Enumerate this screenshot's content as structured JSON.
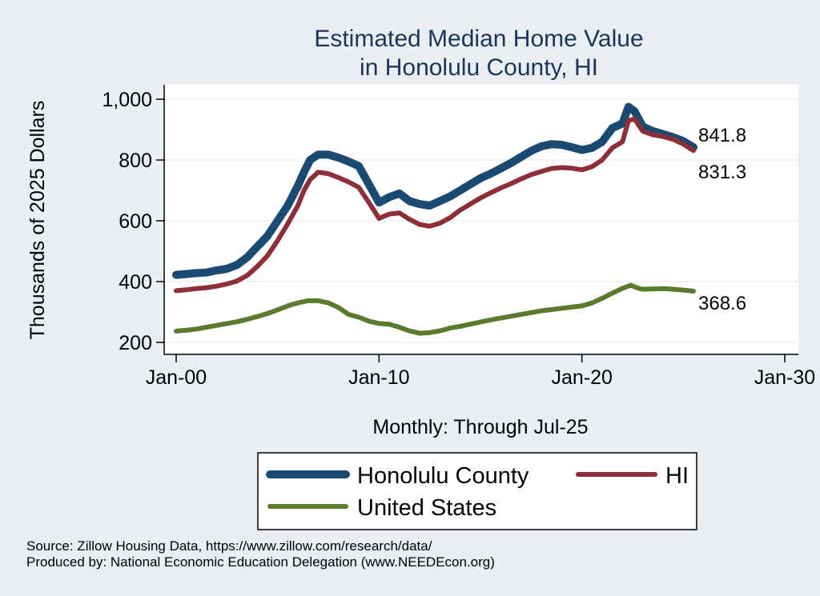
{
  "chart_data": {
    "type": "line",
    "title": [
      "Estimated Median Home Value",
      "in Honolulu County, HI"
    ],
    "ylabel": "Thousands of 2025 Dollars",
    "xlabel": "Monthly: Through Jul-25",
    "xlim": [
      2000,
      2030
    ],
    "ylim": [
      180,
      1040
    ],
    "x_ticks": [
      {
        "value": 2000,
        "label": "Jan-00"
      },
      {
        "value": 2010,
        "label": "Jan-10"
      },
      {
        "value": 2020,
        "label": "Jan-20"
      },
      {
        "value": 2030,
        "label": "Jan-30"
      }
    ],
    "y_ticks": [
      {
        "value": 200,
        "label": "200"
      },
      {
        "value": 400,
        "label": "400"
      },
      {
        "value": 600,
        "label": "600"
      },
      {
        "value": 800,
        "label": "800"
      },
      {
        "value": 1000,
        "label": "1,000"
      }
    ],
    "grid": true,
    "series": [
      {
        "name": "Honolulu County",
        "color": "#1a4a72",
        "end_label": "841.8",
        "points": [
          [
            2000,
            422
          ],
          [
            2000.5,
            425
          ],
          [
            2001,
            428
          ],
          [
            2001.5,
            430
          ],
          [
            2002,
            437
          ],
          [
            2002.5,
            442
          ],
          [
            2003,
            455
          ],
          [
            2003.5,
            480
          ],
          [
            2004,
            515
          ],
          [
            2004.5,
            550
          ],
          [
            2005,
            600
          ],
          [
            2005.5,
            650
          ],
          [
            2006,
            715
          ],
          [
            2006.3,
            760
          ],
          [
            2006.6,
            800
          ],
          [
            2007,
            818
          ],
          [
            2007.5,
            818
          ],
          [
            2008,
            808
          ],
          [
            2008.5,
            795
          ],
          [
            2009,
            780
          ],
          [
            2009.5,
            720
          ],
          [
            2010,
            660
          ],
          [
            2010.5,
            678
          ],
          [
            2011,
            690
          ],
          [
            2011.5,
            665
          ],
          [
            2012,
            655
          ],
          [
            2012.5,
            650
          ],
          [
            2013,
            665
          ],
          [
            2013.5,
            680
          ],
          [
            2014,
            700
          ],
          [
            2014.5,
            720
          ],
          [
            2015,
            740
          ],
          [
            2015.5,
            755
          ],
          [
            2016,
            772
          ],
          [
            2016.5,
            790
          ],
          [
            2017,
            810
          ],
          [
            2017.5,
            830
          ],
          [
            2018,
            845
          ],
          [
            2018.5,
            852
          ],
          [
            2019,
            850
          ],
          [
            2019.5,
            842
          ],
          [
            2020,
            833
          ],
          [
            2020.5,
            840
          ],
          [
            2021,
            860
          ],
          [
            2021.5,
            905
          ],
          [
            2022,
            920
          ],
          [
            2022.3,
            975
          ],
          [
            2022.6,
            960
          ],
          [
            2023,
            910
          ],
          [
            2023.5,
            895
          ],
          [
            2024,
            885
          ],
          [
            2024.5,
            875
          ],
          [
            2025,
            862
          ],
          [
            2025.5,
            842
          ]
        ]
      },
      {
        "name": "HI",
        "color": "#8c2f39",
        "end_label": "831.3",
        "points": [
          [
            2000,
            370
          ],
          [
            2000.5,
            373
          ],
          [
            2001,
            377
          ],
          [
            2001.5,
            380
          ],
          [
            2002,
            385
          ],
          [
            2002.5,
            392
          ],
          [
            2003,
            402
          ],
          [
            2003.5,
            420
          ],
          [
            2004,
            450
          ],
          [
            2004.5,
            485
          ],
          [
            2005,
            535
          ],
          [
            2005.5,
            590
          ],
          [
            2006,
            650
          ],
          [
            2006.3,
            700
          ],
          [
            2006.6,
            735
          ],
          [
            2007,
            760
          ],
          [
            2007.5,
            755
          ],
          [
            2008,
            742
          ],
          [
            2008.5,
            728
          ],
          [
            2009,
            710
          ],
          [
            2009.5,
            660
          ],
          [
            2010,
            608
          ],
          [
            2010.5,
            622
          ],
          [
            2011,
            626
          ],
          [
            2011.5,
            605
          ],
          [
            2012,
            588
          ],
          [
            2012.5,
            582
          ],
          [
            2013,
            592
          ],
          [
            2013.5,
            610
          ],
          [
            2014,
            635
          ],
          [
            2014.5,
            655
          ],
          [
            2015,
            675
          ],
          [
            2015.5,
            692
          ],
          [
            2016,
            708
          ],
          [
            2016.5,
            722
          ],
          [
            2017,
            738
          ],
          [
            2017.5,
            752
          ],
          [
            2018,
            762
          ],
          [
            2018.5,
            772
          ],
          [
            2019,
            775
          ],
          [
            2019.5,
            773
          ],
          [
            2020,
            768
          ],
          [
            2020.5,
            778
          ],
          [
            2021,
            800
          ],
          [
            2021.5,
            840
          ],
          [
            2022,
            860
          ],
          [
            2022.3,
            930
          ],
          [
            2022.6,
            935
          ],
          [
            2023,
            895
          ],
          [
            2023.5,
            883
          ],
          [
            2024,
            877
          ],
          [
            2024.5,
            868
          ],
          [
            2025,
            852
          ],
          [
            2025.5,
            831
          ]
        ]
      },
      {
        "name": "United States",
        "color": "#5a7a2e",
        "end_label": "368.6",
        "points": [
          [
            2000,
            237
          ],
          [
            2000.5,
            240
          ],
          [
            2001,
            244
          ],
          [
            2001.5,
            250
          ],
          [
            2002,
            256
          ],
          [
            2002.5,
            262
          ],
          [
            2003,
            268
          ],
          [
            2003.5,
            276
          ],
          [
            2004,
            285
          ],
          [
            2004.5,
            295
          ],
          [
            2005,
            307
          ],
          [
            2005.5,
            320
          ],
          [
            2006,
            330
          ],
          [
            2006.5,
            337
          ],
          [
            2007,
            337
          ],
          [
            2007.5,
            330
          ],
          [
            2008,
            315
          ],
          [
            2008.5,
            292
          ],
          [
            2009,
            283
          ],
          [
            2009.5,
            270
          ],
          [
            2010,
            262
          ],
          [
            2010.5,
            260
          ],
          [
            2011,
            250
          ],
          [
            2011.5,
            238
          ],
          [
            2012,
            230
          ],
          [
            2012.5,
            232
          ],
          [
            2013,
            238
          ],
          [
            2013.5,
            247
          ],
          [
            2014,
            253
          ],
          [
            2014.5,
            260
          ],
          [
            2015,
            267
          ],
          [
            2015.5,
            274
          ],
          [
            2016,
            280
          ],
          [
            2016.5,
            286
          ],
          [
            2017,
            292
          ],
          [
            2017.5,
            298
          ],
          [
            2018,
            304
          ],
          [
            2018.5,
            308
          ],
          [
            2019,
            312
          ],
          [
            2019.5,
            316
          ],
          [
            2020,
            320
          ],
          [
            2020.5,
            330
          ],
          [
            2021,
            345
          ],
          [
            2021.5,
            362
          ],
          [
            2022,
            378
          ],
          [
            2022.4,
            388
          ],
          [
            2022.8,
            378
          ],
          [
            2023,
            375
          ],
          [
            2023.5,
            376
          ],
          [
            2024,
            377
          ],
          [
            2024.5,
            375
          ],
          [
            2025,
            372
          ],
          [
            2025.5,
            368.6
          ]
        ]
      }
    ]
  },
  "legend": {
    "items": [
      {
        "label": "Honolulu County",
        "color": "#1a4a72"
      },
      {
        "label": "HI",
        "color": "#8c2f39"
      },
      {
        "label": "United States",
        "color": "#5a7a2e"
      }
    ]
  },
  "footer": {
    "source": "Source: Zillow Housing Data, https://www.zillow.com/research/data/",
    "produced": "Produced by: National Economic Education Delegation (www.NEEDEcon.org)"
  }
}
